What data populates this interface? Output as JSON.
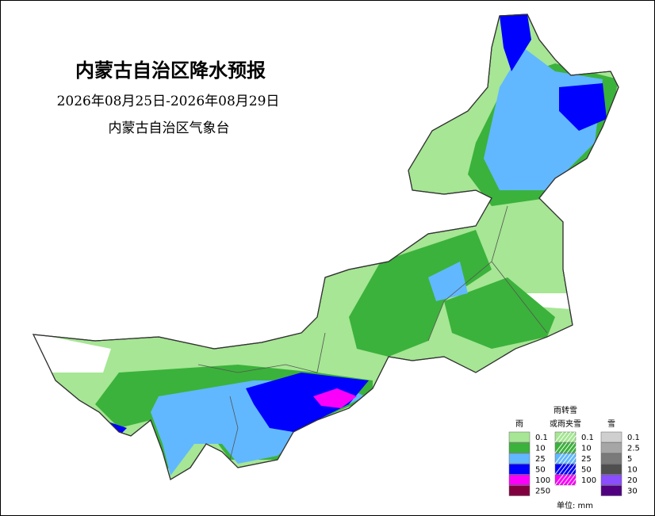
{
  "header": {
    "title": "内蒙古自治区降水预报",
    "date_range": "2026年08月25日-2026年08月29日",
    "issuer": "内蒙古自治区气象台"
  },
  "legend": {
    "groups": [
      {
        "title": [
          "雨"
        ],
        "hatch": false,
        "items": [
          {
            "label": "0.1",
            "color": "#a6e694"
          },
          {
            "label": "10",
            "color": "#3bb23b"
          },
          {
            "label": "25",
            "color": "#61b8ff"
          },
          {
            "label": "50",
            "color": "#0000fe"
          },
          {
            "label": "100",
            "color": "#fa00fa"
          },
          {
            "label": "250",
            "color": "#800040"
          }
        ]
      },
      {
        "title": [
          "雨转雪",
          "或雨夹雪"
        ],
        "hatch": true,
        "items": [
          {
            "label": "0.1",
            "color": "#a6e694"
          },
          {
            "label": "10",
            "color": "#3bb23b"
          },
          {
            "label": "25",
            "color": "#61b8ff"
          },
          {
            "label": "50",
            "color": "#0000fe"
          },
          {
            "label": "100",
            "color": "#fa00fa"
          }
        ]
      },
      {
        "title": [
          "雪"
        ],
        "hatch": false,
        "items": [
          {
            "label": "0.1",
            "color": "#cfcfcf"
          },
          {
            "label": "2.5",
            "color": "#a6a6a6"
          },
          {
            "label": "5",
            "color": "#7a7a7a"
          },
          {
            "label": "10",
            "color": "#4f4f4f"
          },
          {
            "label": "20",
            "color": "#8a4dff"
          },
          {
            "label": "30",
            "color": "#500080"
          }
        ]
      }
    ],
    "unit": "单位: mm"
  }
}
